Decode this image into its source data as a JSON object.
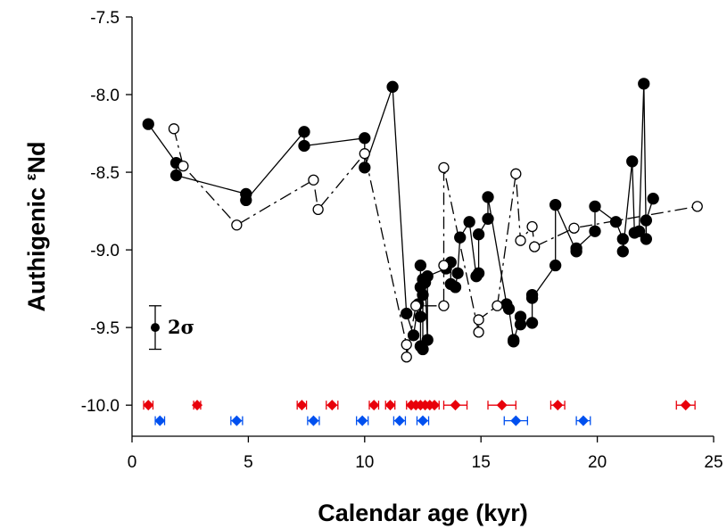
{
  "chart_data": {
    "type": "scatter",
    "xlabel": "Calendar age (kyr)",
    "ylabel": {
      "main": "Authigenic ",
      "sup": "ε",
      "sub": "Nd"
    },
    "xlim": [
      0,
      25
    ],
    "ylim": [
      -10.2,
      -7.5
    ],
    "y_reversed": true,
    "xticks": [
      0,
      5,
      10,
      15,
      20,
      25
    ],
    "yticks": [
      -7.5,
      -8.0,
      -8.5,
      -9.0,
      -9.5,
      -10.0
    ],
    "ytick_labels": [
      "-7.5",
      "-8.0",
      "-8.5",
      "-9.0",
      "-9.5",
      "-10.0"
    ],
    "grid": false,
    "error_bar_label": "2σ",
    "error_bar": {
      "center": -9.5,
      "half_width": 0.14
    },
    "series": [
      {
        "style": "filled-circle-solid-line",
        "color": "#000000",
        "points": [
          [
            0.7,
            -8.19
          ],
          [
            1.9,
            -8.44
          ],
          [
            1.9,
            -8.52
          ],
          [
            4.9,
            -8.64
          ],
          [
            4.9,
            -8.68
          ],
          [
            7.4,
            -8.24
          ],
          [
            7.4,
            -8.33
          ],
          [
            10.0,
            -8.28
          ],
          [
            10.0,
            -8.47
          ],
          [
            11.2,
            -7.95
          ],
          [
            11.8,
            -9.41
          ],
          [
            12.1,
            -9.55
          ],
          [
            12.3,
            -9.35
          ],
          [
            12.4,
            -9.43
          ],
          [
            12.4,
            -9.24
          ],
          [
            12.4,
            -9.1
          ],
          [
            12.4,
            -9.62
          ],
          [
            12.5,
            -9.64
          ],
          [
            12.5,
            -9.19
          ],
          [
            12.5,
            -9.29
          ],
          [
            12.6,
            -9.21
          ],
          [
            12.7,
            -9.58
          ],
          [
            12.7,
            -9.17
          ],
          [
            13.5,
            -9.12
          ],
          [
            13.7,
            -9.08
          ],
          [
            13.7,
            -9.22
          ],
          [
            13.9,
            -9.24
          ],
          [
            14.0,
            -9.15
          ],
          [
            14.1,
            -8.92
          ],
          [
            14.5,
            -8.82
          ],
          [
            14.8,
            -9.17
          ],
          [
            14.9,
            -9.15
          ],
          [
            14.9,
            -8.9
          ],
          [
            15.3,
            -8.8
          ],
          [
            15.3,
            -8.66
          ],
          [
            16.1,
            -9.35
          ],
          [
            16.2,
            -9.38
          ],
          [
            16.4,
            -9.58
          ],
          [
            16.4,
            -9.59
          ],
          [
            16.7,
            -9.43
          ],
          [
            16.7,
            -9.48
          ],
          [
            17.2,
            -9.47
          ],
          [
            17.2,
            -9.29
          ],
          [
            17.2,
            -9.31
          ],
          [
            18.2,
            -9.1
          ],
          [
            18.2,
            -8.71
          ],
          [
            19.1,
            -9.01
          ],
          [
            19.1,
            -8.99
          ],
          [
            19.9,
            -8.88
          ],
          [
            19.9,
            -8.72
          ],
          [
            20.8,
            -8.82
          ],
          [
            21.1,
            -8.93
          ],
          [
            21.1,
            -9.01
          ],
          [
            21.5,
            -8.43
          ],
          [
            21.6,
            -8.89
          ],
          [
            21.8,
            -8.88
          ],
          [
            22.0,
            -7.93
          ],
          [
            22.1,
            -8.93
          ],
          [
            22.1,
            -8.81
          ],
          [
            22.4,
            -8.67
          ]
        ]
      },
      {
        "style": "open-circle-dashed-line",
        "color": "#000000",
        "points": [
          [
            1.8,
            -8.22
          ],
          [
            2.2,
            -8.46
          ],
          [
            4.5,
            -8.84
          ],
          [
            7.8,
            -8.55
          ],
          [
            8.0,
            -8.74
          ],
          [
            10.0,
            -8.38
          ],
          [
            11.8,
            -9.61
          ],
          [
            11.8,
            -9.69
          ],
          [
            12.2,
            -9.36
          ],
          [
            13.4,
            -9.36
          ],
          [
            13.4,
            -9.1
          ],
          [
            13.4,
            -8.47
          ],
          [
            14.9,
            -9.53
          ],
          [
            14.9,
            -9.45
          ],
          [
            15.7,
            -9.36
          ],
          [
            16.5,
            -8.51
          ],
          [
            16.7,
            -8.94
          ],
          [
            17.2,
            -8.85
          ],
          [
            17.3,
            -8.98
          ],
          [
            19.0,
            -8.86
          ],
          [
            24.3,
            -8.72
          ]
        ]
      }
    ],
    "age_markers": [
      {
        "color": "#e8000b",
        "y": -10.0,
        "points": [
          {
            "x": 0.7,
            "err": 0.2
          },
          {
            "x": 2.8,
            "err": 0.15
          },
          {
            "x": 7.3,
            "err": 0.2
          },
          {
            "x": 8.6,
            "err": 0.25
          },
          {
            "x": 10.4,
            "err": 0.2
          },
          {
            "x": 11.1,
            "err": 0.2
          },
          {
            "x": 12.0,
            "err": 0.2
          },
          {
            "x": 12.2,
            "err": 0.2
          },
          {
            "x": 12.4,
            "err": 0.2
          },
          {
            "x": 12.6,
            "err": 0.2
          },
          {
            "x": 12.8,
            "err": 0.2
          },
          {
            "x": 13.0,
            "err": 0.2
          },
          {
            "x": 13.9,
            "err": 0.5
          },
          {
            "x": 15.9,
            "err": 0.6
          },
          {
            "x": 18.3,
            "err": 0.3
          },
          {
            "x": 23.8,
            "err": 0.4
          }
        ]
      },
      {
        "color": "#0050ef",
        "y": -10.1,
        "points": [
          {
            "x": 1.2,
            "err": 0.2
          },
          {
            "x": 4.5,
            "err": 0.25
          },
          {
            "x": 7.8,
            "err": 0.25
          },
          {
            "x": 9.9,
            "err": 0.25
          },
          {
            "x": 11.5,
            "err": 0.25
          },
          {
            "x": 12.5,
            "err": 0.25
          },
          {
            "x": 16.5,
            "err": 0.5
          },
          {
            "x": 19.4,
            "err": 0.3
          }
        ]
      }
    ]
  }
}
